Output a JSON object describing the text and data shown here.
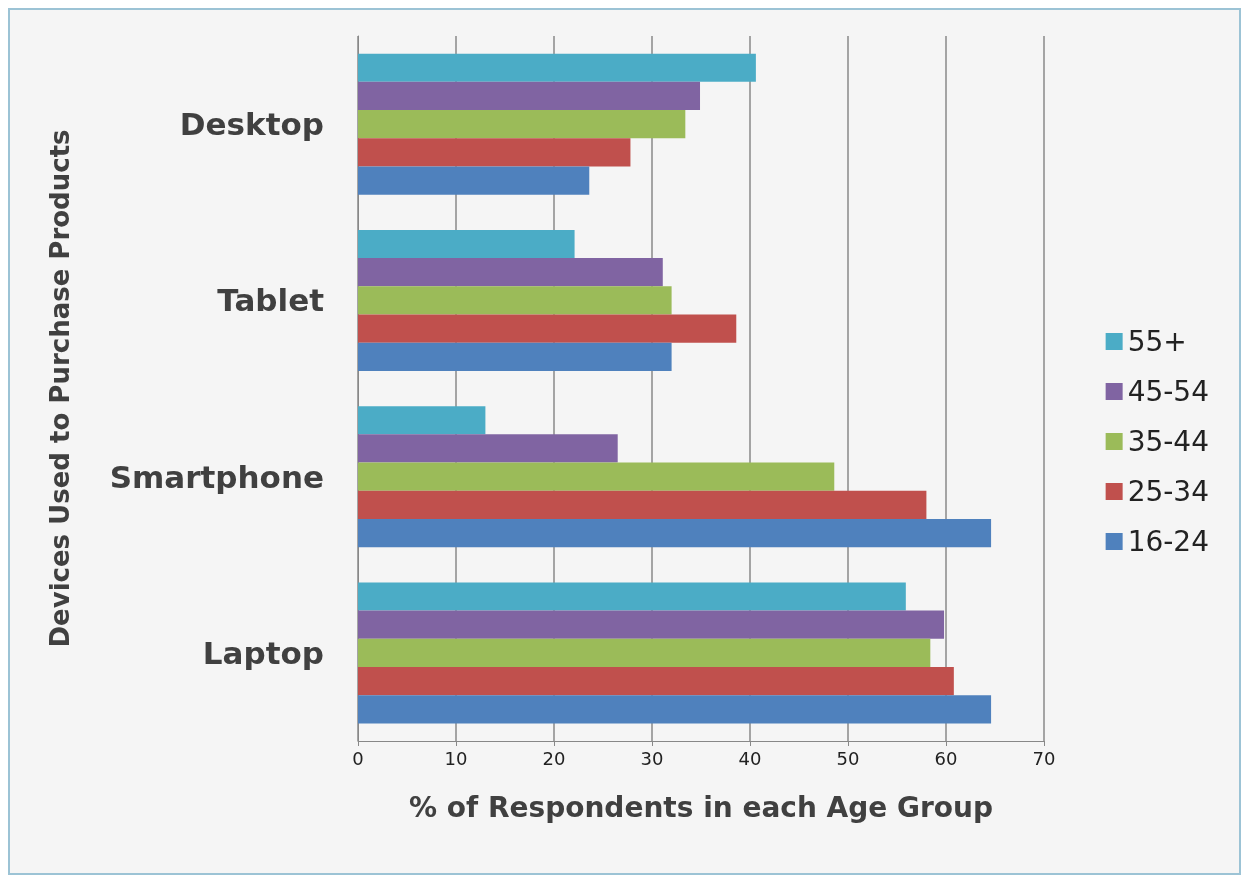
{
  "chart_data": {
    "type": "bar",
    "orientation": "horizontal",
    "xlabel": "% of Respondents in each Age Group",
    "ylabel": "Devices Used to Purchase Products",
    "categories": [
      "Desktop",
      "Tablet",
      "Smartphone",
      "Laptop"
    ],
    "series": [
      {
        "name": "55+",
        "color": "#4bacc6",
        "values": [
          40.6,
          22.1,
          13.0,
          55.9
        ]
      },
      {
        "name": "45-54",
        "color": "#8064a2",
        "values": [
          34.9,
          31.1,
          26.5,
          59.8
        ]
      },
      {
        "name": "35-44",
        "color": "#9bbb59",
        "values": [
          33.4,
          32.0,
          48.6,
          58.4
        ]
      },
      {
        "name": "25-34",
        "color": "#c0504d",
        "values": [
          27.8,
          38.6,
          58.0,
          60.8
        ]
      },
      {
        "name": "16-24",
        "color": "#4f81bd",
        "values": [
          23.6,
          32.0,
          64.6,
          64.6
        ]
      }
    ],
    "xlim": [
      0,
      70
    ],
    "xticks": [
      0,
      10,
      20,
      30,
      40,
      50,
      60,
      70
    ],
    "grid": "x",
    "legend": "right"
  }
}
